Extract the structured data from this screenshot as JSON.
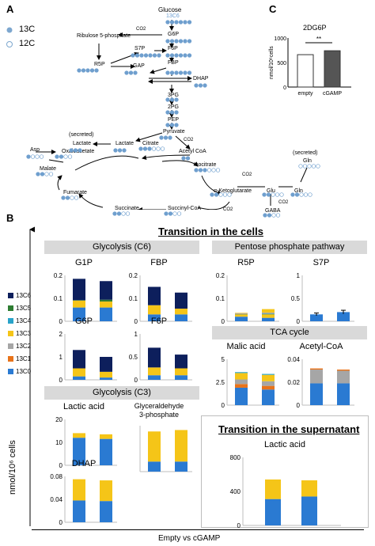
{
  "panels": {
    "a": "A",
    "b": "B",
    "c": "C"
  },
  "pathway": {
    "legend": {
      "c13": "13C",
      "c12": "12C"
    },
    "glucose": "Glucose",
    "glucose_tag": "13C6",
    "r5p_name": "Ribulose 5-phosphate",
    "co2": "CO2",
    "nodes": {
      "g6p": "G6P",
      "f6p": "F6P",
      "fbp": "FBP",
      "s7p": "S7P",
      "r5p": "R5P",
      "gap": "GAP",
      "dhap": "DHAP",
      "p3g": "3PG",
      "p2g": "2PG",
      "pep": "PEP",
      "pyruvate": "Pyruvate",
      "lactate": "Lactate",
      "secreted": "(secreted)",
      "lactate2": "Lactate",
      "acetylcoa": "Acetyl CoA",
      "citrate": "Citrate",
      "isocitrate": "Isocitrate",
      "oaa": "Oxaloacetate",
      "asp": "Asp",
      "malate": "Malate",
      "fumarate": "Fumarate",
      "succinate": "Succinate",
      "succcoa": "Succinyl-CoA",
      "akg": "α-Ketoglutarate",
      "glu": "Glu",
      "gln": "Gln",
      "gln_sec": "(secreted)",
      "gln2": "Gln",
      "gaba": "GABA"
    }
  },
  "panel_c": {
    "chart_data": {
      "type": "bar",
      "title": "2DG6P",
      "ylabel": "nmol/10⁶cells",
      "categories": [
        "empty",
        "cGAMP"
      ],
      "values": [
        660,
        740
      ],
      "ylim": [
        0,
        1000
      ],
      "yticks": [
        "0",
        "500",
        "1000"
      ],
      "significance": "**"
    }
  },
  "panel_b": {
    "main_title": "Transition in the cells",
    "supernatant_title": "Transition in the supernatant",
    "ylabel": "nmol/10⁶ cells",
    "xlabel": "Empty  vs  cGAMP",
    "sections": {
      "glycolysis_c6": "Glycolysis (C6)",
      "glycolysis_c3": "Glycolysis (C3)",
      "ppp": "Pentose phosphate pathway",
      "tca": "TCA cycle"
    },
    "legend": [
      {
        "label": "13C6",
        "color": "#0d1f5c"
      },
      {
        "label": "13C5",
        "color": "#2e7d32"
      },
      {
        "label": "13C4",
        "color": "#29a3c9"
      },
      {
        "label": "13C3",
        "color": "#f5c518"
      },
      {
        "label": "13C2",
        "color": "#a6a6a6"
      },
      {
        "label": "13C1",
        "color": "#e8731a"
      },
      {
        "label": "13C0",
        "color": "#2a7ad2"
      }
    ],
    "chart_data": [
      {
        "id": "g1p",
        "type": "bar",
        "title": "G1P",
        "categories": [
          "Empty",
          "cGAMP"
        ],
        "yticks": [
          "0",
          "0.1",
          "0.2"
        ],
        "ylim": [
          0,
          0.2
        ],
        "series": [
          {
            "name": "13C0",
            "values": [
              0.06,
              0.06
            ]
          },
          {
            "name": "13C3",
            "values": [
              0.03,
              0.026
            ]
          },
          {
            "name": "13C5",
            "values": [
              0.002,
              0.008
            ]
          },
          {
            "name": "13C6",
            "values": [
              0.093,
              0.081
            ]
          }
        ]
      },
      {
        "id": "fbp",
        "type": "bar",
        "title": "FBP",
        "categories": [
          "Empty",
          "cGAMP"
        ],
        "yticks": [
          "0",
          "0.1",
          "0.2"
        ],
        "ylim": [
          0,
          0.2
        ],
        "series": [
          {
            "name": "13C0",
            "values": [
              0.03,
              0.03
            ]
          },
          {
            "name": "13C3",
            "values": [
              0.04,
              0.025
            ]
          },
          {
            "name": "13C6",
            "values": [
              0.08,
              0.07
            ]
          }
        ]
      },
      {
        "id": "g6p",
        "type": "bar",
        "title": "G6P",
        "categories": [
          "Empty",
          "cGAMP"
        ],
        "yticks": [
          "0",
          "1",
          "2"
        ],
        "ylim": [
          0,
          2
        ],
        "series": [
          {
            "name": "13C0",
            "values": [
              0.15,
              0.1
            ]
          },
          {
            "name": "13C3",
            "values": [
              0.35,
              0.25
            ]
          },
          {
            "name": "13C6",
            "values": [
              0.8,
              0.65
            ]
          }
        ]
      },
      {
        "id": "f6p",
        "type": "bar",
        "title": "F6P",
        "categories": [
          "Empty",
          "cGAMP"
        ],
        "yticks": [
          "0",
          "0.5",
          "1"
        ],
        "ylim": [
          0,
          1
        ],
        "series": [
          {
            "name": "13C0",
            "values": [
              0.1,
              0.1
            ]
          },
          {
            "name": "13C3",
            "values": [
              0.17,
              0.15
            ]
          },
          {
            "name": "13C6",
            "values": [
              0.43,
              0.3
            ]
          }
        ]
      },
      {
        "id": "lactic",
        "type": "bar",
        "title": "Lactic acid",
        "categories": [
          "Empty",
          "cGAMP"
        ],
        "yticks": [
          "0",
          "10",
          "20"
        ],
        "ylim": [
          0,
          20
        ],
        "series": [
          {
            "name": "13C0",
            "values": [
              12,
              11.5
            ]
          },
          {
            "name": "13C3",
            "values": [
              2,
              2
            ]
          }
        ]
      },
      {
        "id": "gap",
        "type": "bar",
        "title": "Glyceraldehyde\n3-phosphate",
        "categories": [
          "Empty",
          "cGAMP"
        ],
        "yticks": [],
        "ylim": [
          0,
          1.6
        ],
        "series": [
          {
            "name": "13C0",
            "values": [
              0.35,
              0.35
            ]
          },
          {
            "name": "13C3",
            "values": [
              1.05,
              1.1
            ]
          }
        ]
      },
      {
        "id": "dhap",
        "type": "bar",
        "title": "DHAP",
        "categories": [
          "Empty",
          "cGAMP"
        ],
        "yticks": [
          "0",
          "0.04",
          "0.08"
        ],
        "ylim": [
          0,
          0.08
        ],
        "series": [
          {
            "name": "13C0",
            "values": [
              0.038,
              0.037
            ]
          },
          {
            "name": "13C3",
            "values": [
              0.037,
              0.036
            ]
          }
        ]
      },
      {
        "id": "r5p",
        "type": "bar",
        "title": "R5P",
        "categories": [
          "Empty",
          "cGAMP"
        ],
        "yticks": [
          "0",
          "0.1",
          "0.2"
        ],
        "ylim": [
          0,
          0.2
        ],
        "series": [
          {
            "name": "13C0",
            "values": [
              0.02,
              0.015
            ]
          },
          {
            "name": "13C3",
            "values": [
              0.01,
              0.015
            ]
          },
          {
            "name": "13C5",
            "values": [
              0.001,
              0.002
            ]
          },
          {
            "name": "13C4",
            "values": [
              0.001,
              0.002
            ]
          },
          {
            "name": "13C1",
            "values": [
              0.001,
              0.001
            ]
          },
          {
            "name": "13C2",
            "values": [
              0.002,
              0.003
            ]
          },
          {
            "name": "13C6",
            "values": [
              0.0,
              0.0
            ]
          },
          {
            "name": "13C3b",
            "values": [
              0.002,
              0.015
            ]
          }
        ]
      },
      {
        "id": "s7p",
        "type": "bar",
        "title": "S7P",
        "categories": [
          "Empty",
          "cGAMP"
        ],
        "yticks": [
          "0",
          "0.5",
          "1"
        ],
        "ylim": [
          0,
          1
        ],
        "series": [
          {
            "name": "13C0",
            "values": [
              0.15,
              0.2
            ]
          }
        ],
        "errors": [
          0.03,
          0.04
        ]
      },
      {
        "id": "malic",
        "type": "bar",
        "title": "Malic acid",
        "categories": [
          "Empty",
          "cGAMP"
        ],
        "yticks": [
          "0",
          "2.5",
          "5"
        ],
        "ylim": [
          0,
          5
        ],
        "series": [
          {
            "name": "13C0",
            "values": [
              1.9,
              1.7
            ]
          },
          {
            "name": "13C1",
            "values": [
              0.4,
              0.4
            ]
          },
          {
            "name": "13C2",
            "values": [
              0.5,
              0.5
            ]
          },
          {
            "name": "13C3",
            "values": [
              0.7,
              0.7
            ]
          },
          {
            "name": "13C4",
            "values": [
              0.1,
              0.1
            ]
          }
        ]
      },
      {
        "id": "acetyl",
        "type": "bar",
        "title": "Acetyl-CoA",
        "categories": [
          "Empty",
          "cGAMP"
        ],
        "yticks": [
          "0",
          "0.02",
          "0.04"
        ],
        "ylim": [
          0,
          0.04
        ],
        "series": [
          {
            "name": "13C0",
            "values": [
              0.019,
              0.019
            ]
          },
          {
            "name": "13C2",
            "values": [
              0.012,
              0.011
            ]
          },
          {
            "name": "13C1",
            "values": [
              0.001,
              0.001
            ]
          }
        ]
      },
      {
        "id": "lactic_sup",
        "type": "bar",
        "title": "Lactic acid",
        "categories": [
          "Empty",
          "cGAMP"
        ],
        "yticks": [
          "0",
          "400",
          "800"
        ],
        "ylim": [
          0,
          800
        ],
        "series": [
          {
            "name": "13C0",
            "values": [
              310,
              340
            ]
          },
          {
            "name": "13C3",
            "values": [
              230,
              190
            ]
          }
        ]
      }
    ]
  }
}
